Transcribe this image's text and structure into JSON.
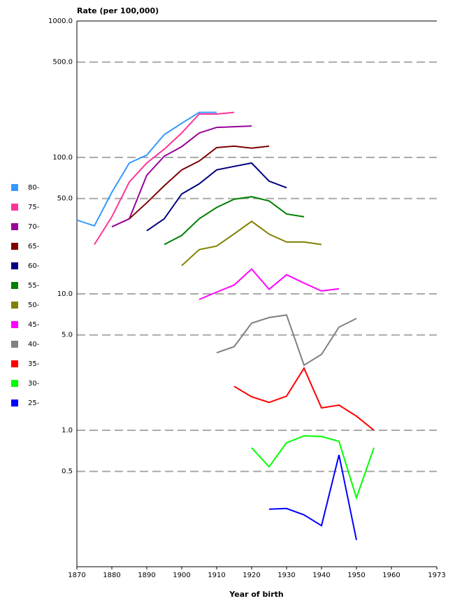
{
  "chart_data": {
    "type": "line",
    "y_label": "Rate (per 100,000)",
    "x_label": "Year of birth",
    "log_y": true,
    "grid": true,
    "legend": "left",
    "x": [
      1870,
      1875,
      1880,
      1885,
      1890,
      1895,
      1900,
      1905,
      1910,
      1915,
      1920,
      1925,
      1930,
      1935,
      1940,
      1945,
      1950,
      1955
    ],
    "xlim": [
      1870,
      1973
    ],
    "xticks": [
      1870,
      1880,
      1890,
      1900,
      1910,
      1920,
      1930,
      1940,
      1950,
      1960,
      1973
    ],
    "ylim": [
      0.1,
      1000
    ],
    "yticks": [
      {
        "value": 1000,
        "label": "1000.0"
      },
      {
        "value": 500,
        "label": "500.0"
      },
      {
        "value": 100,
        "label": "100.0"
      },
      {
        "value": 50,
        "label": "50.0"
      },
      {
        "value": 10,
        "label": "10.0"
      },
      {
        "value": 5,
        "label": "5.0"
      },
      {
        "value": 1,
        "label": "1.0"
      },
      0.5
    ],
    "series": [
      {
        "name": "80-",
        "color": "#3399ff",
        "values": [
          34.7,
          31.5,
          55.5,
          91,
          104,
          147,
          178,
          214,
          214,
          null,
          null,
          null,
          null,
          null,
          null,
          null,
          null,
          null
        ]
      },
      {
        "name": "75-",
        "color": "#ff3399",
        "values": [
          null,
          23,
          36.7,
          66,
          91,
          115,
          151,
          208,
          208,
          214,
          null,
          null,
          null,
          null,
          null,
          null,
          null,
          null
        ]
      },
      {
        "name": "70-",
        "color": "#990099",
        "values": [
          null,
          null,
          31,
          35.5,
          74,
          102,
          120,
          151,
          166,
          168,
          170,
          null,
          null,
          null,
          null,
          null,
          null,
          null
        ]
      },
      {
        "name": "65-",
        "color": "#800000",
        "values": [
          null,
          null,
          null,
          35.5,
          46.5,
          62,
          81,
          94,
          118,
          121,
          117,
          121,
          null,
          null,
          null,
          null,
          null,
          null
        ]
      },
      {
        "name": "60-",
        "color": "#000080",
        "values": [
          null,
          null,
          null,
          null,
          29,
          35.5,
          54,
          64,
          81,
          86,
          91,
          67,
          60,
          null,
          null,
          null,
          null,
          null
        ]
      },
      {
        "name": "55-",
        "color": "#008000",
        "values": [
          null,
          null,
          null,
          null,
          null,
          23,
          26.8,
          35.5,
          43,
          49.4,
          51.5,
          48,
          38.5,
          36.7,
          null,
          null,
          null,
          null
        ]
      },
      {
        "name": "50-",
        "color": "#808000",
        "values": [
          null,
          null,
          null,
          null,
          null,
          null,
          16.1,
          21.1,
          22.4,
          27.5,
          34,
          27.4,
          24,
          24,
          23,
          null,
          null,
          null
        ]
      },
      {
        "name": "45-",
        "color": "#ff00ff",
        "values": [
          null,
          null,
          null,
          null,
          null,
          null,
          null,
          9.1,
          10.3,
          11.6,
          15.2,
          10.8,
          13.8,
          12,
          10.5,
          10.9,
          null,
          null
        ]
      },
      {
        "name": "40-",
        "color": "#808080",
        "values": [
          null,
          null,
          null,
          null,
          null,
          null,
          null,
          null,
          3.7,
          4.1,
          6.1,
          6.7,
          7.0,
          3.0,
          3.6,
          5.7,
          6.6,
          null
        ]
      },
      {
        "name": "35-",
        "color": "#ff0000",
        "values": [
          null,
          null,
          null,
          null,
          null,
          null,
          null,
          null,
          null,
          2.1,
          1.76,
          1.6,
          1.78,
          2.85,
          1.46,
          1.53,
          1.27,
          1.0
        ]
      },
      {
        "name": "30-",
        "color": "#00ff00",
        "values": [
          null,
          null,
          null,
          null,
          null,
          null,
          null,
          null,
          null,
          null,
          0.745,
          0.54,
          0.81,
          0.91,
          0.9,
          0.83,
          0.32,
          0.745
        ]
      },
      {
        "name": "25-",
        "color": "#0000ff",
        "values": [
          null,
          null,
          null,
          null,
          null,
          null,
          null,
          null,
          null,
          null,
          null,
          0.264,
          0.267,
          0.24,
          0.2,
          0.66,
          0.157,
          null
        ]
      }
    ]
  }
}
